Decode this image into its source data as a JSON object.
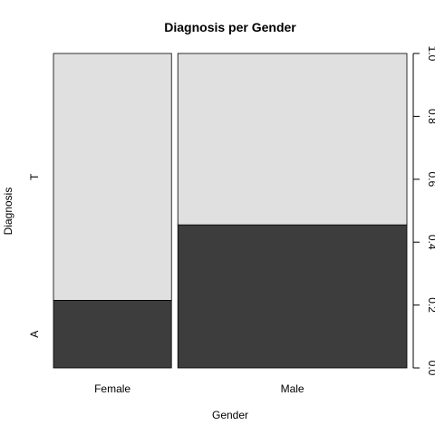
{
  "chart_data": {
    "type": "spineplot",
    "title": "Diagnosis per Gender",
    "xlabel": "Gender",
    "ylabel": "Diagnosis",
    "categories": [
      "Female",
      "Male"
    ],
    "category_widths": [
      0.34,
      0.66
    ],
    "series": [
      {
        "name": "A",
        "values": [
          0.215,
          0.455
        ]
      },
      {
        "name": "T",
        "values": [
          0.785,
          0.545
        ]
      }
    ],
    "colors": {
      "A": "#3d3d3d",
      "T": "#e0e0e0"
    },
    "right_axis": {
      "ylim": [
        0,
        1
      ],
      "ticks": [
        "0.0",
        "0.2",
        "0.4",
        "0.6",
        "0.8",
        "1.0"
      ]
    }
  }
}
